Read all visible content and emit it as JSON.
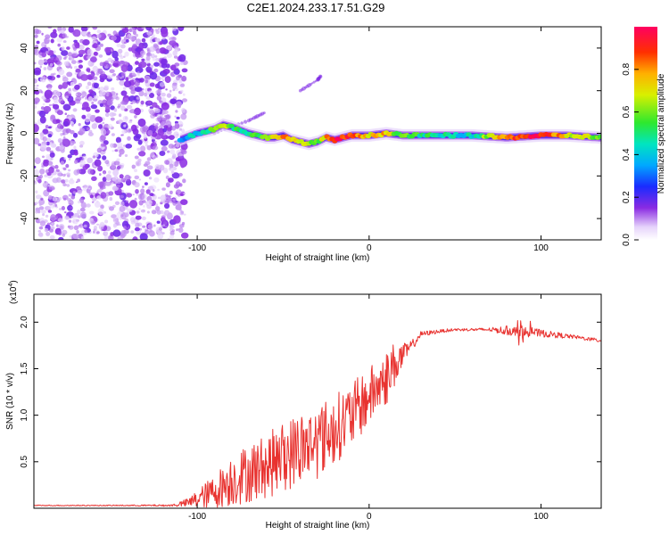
{
  "figure": {
    "title": "C2E1.2024.233.17.51.G29",
    "colors": {
      "spectrogram_low": "#8a2be2",
      "snr_line": "#e8322f",
      "axis": "#000000"
    }
  },
  "chart_data": [
    {
      "type": "heatmap",
      "xlabel": "Height of straight line (km)",
      "ylabel": "Frequency (Hz)",
      "xlim": [
        -195,
        135
      ],
      "ylim": [
        -50,
        50
      ],
      "xticks": [
        -100,
        0,
        100
      ],
      "xtick_labels": [
        "-100",
        "0",
        "100"
      ],
      "yticks": [
        -40,
        -20,
        0,
        20,
        40
      ],
      "ytick_labels": [
        "-40",
        "-20",
        "0",
        "20",
        "40"
      ],
      "colorbar": {
        "label": "Normalized spectral amplitude",
        "range": [
          0,
          1
        ],
        "ticks": [
          0.0,
          0.2,
          0.4,
          0.6,
          0.8
        ],
        "tick_labels": [
          "0.0",
          "0.2",
          "0.4",
          "0.6",
          "0.8"
        ]
      },
      "noise_region": {
        "x_from": -195,
        "x_to": -107,
        "y_from": -50,
        "y_to": 50
      },
      "ridge": {
        "x": [
          -110,
          -100,
          -90,
          -85,
          -80,
          -70,
          -60,
          -55,
          -50,
          -45,
          -40,
          -35,
          -30,
          -25,
          -20,
          -10,
          0,
          10,
          20,
          40,
          60,
          80,
          100,
          115,
          135
        ],
        "frequency": [
          -3,
          0,
          2,
          4,
          3,
          0,
          -2,
          -2,
          -1,
          -3,
          -4,
          -5,
          -4,
          -2,
          -3,
          -1,
          -1,
          0,
          -1,
          -1,
          -1,
          -2,
          -1,
          -1,
          -2
        ],
        "amplitude": [
          0.3,
          0.45,
          0.55,
          0.65,
          0.55,
          0.5,
          0.55,
          0.7,
          0.8,
          0.75,
          0.7,
          0.6,
          0.55,
          0.75,
          0.95,
          0.85,
          0.7,
          0.75,
          0.55,
          0.45,
          0.45,
          0.85,
          0.95,
          0.7,
          0.6
        ]
      },
      "secondary_streaks": [
        {
          "x": [
            -90,
            -70,
            -60
          ],
          "frequency": [
            0,
            6,
            10
          ]
        },
        {
          "x": [
            -40,
            -30,
            -28
          ],
          "frequency": [
            20,
            25,
            27
          ]
        }
      ]
    },
    {
      "type": "line",
      "xlabel": "Height of straight line (km)",
      "ylabel": "SNR (10 * v/v)",
      "multiplier": "(x10",
      "multiplier_exp": "4",
      "multiplier_close": ")",
      "xlim": [
        -195,
        135
      ],
      "ylim": [
        0,
        2.3
      ],
      "xticks": [
        -100,
        0,
        100
      ],
      "xtick_labels": [
        "-100",
        "0",
        "100"
      ],
      "yticks": [
        0.5,
        1.0,
        1.5,
        2.0
      ],
      "ytick_labels": [
        "0.5",
        "1.0",
        "1.5",
        "2.0"
      ],
      "series": [
        {
          "x": [
            -195,
            -150,
            -115,
            -105,
            -100,
            -90,
            -80,
            -70,
            -60,
            -50,
            -40,
            -30,
            -20,
            -10,
            0,
            5,
            10,
            15,
            20,
            25,
            30,
            40,
            50,
            60,
            70,
            80,
            90,
            100,
            110,
            120,
            135
          ],
          "value": [
            0.03,
            0.03,
            0.03,
            0.06,
            0.1,
            0.18,
            0.3,
            0.38,
            0.45,
            0.55,
            0.65,
            0.72,
            0.85,
            1.0,
            1.2,
            1.3,
            1.4,
            1.55,
            1.65,
            1.75,
            1.87,
            1.9,
            1.92,
            1.92,
            1.92,
            1.91,
            1.9,
            1.88,
            1.86,
            1.84,
            1.8
          ],
          "spread": [
            0.005,
            0.005,
            0.01,
            0.05,
            0.1,
            0.18,
            0.28,
            0.32,
            0.35,
            0.38,
            0.4,
            0.4,
            0.38,
            0.35,
            0.32,
            0.3,
            0.3,
            0.25,
            0.12,
            0.06,
            0.03,
            0.02,
            0.015,
            0.015,
            0.02,
            0.05,
            0.06,
            0.04,
            0.03,
            0.02,
            0.02
          ]
        }
      ]
    }
  ]
}
